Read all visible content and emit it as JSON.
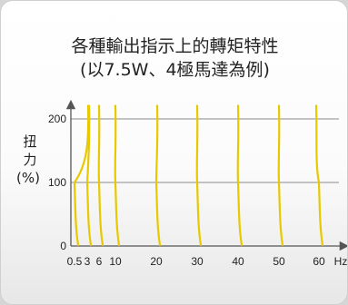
{
  "title_line1": "各種輸出指示上的轉矩特性",
  "title_line2": "(以7.5W、4極馬達為例)",
  "chart_data": {
    "type": "line",
    "title": "各種輸出指示上的轉矩特性 (以7.5W、4極馬達為例)",
    "ylabel_lines": [
      "扭",
      "力",
      "(%)"
    ],
    "xlabel": "Hz",
    "x_ticks": [
      "0.5",
      "3",
      "6",
      "10",
      "20",
      "30",
      "40",
      "50",
      "60"
    ],
    "x_unit_label": "Hz",
    "y_ticks": [
      "0",
      "100",
      "200"
    ],
    "ylim": [
      0,
      230
    ],
    "grid": true,
    "gridlines_y": [
      100,
      200
    ],
    "series_color": "#e8c800",
    "series": [
      {
        "frequency": "0.5",
        "points": [
          [
            0.5,
            215
          ],
          [
            0.5,
            100
          ],
          [
            0.5,
            0
          ]
        ]
      },
      {
        "frequency": "3",
        "points": [
          [
            3,
            215
          ],
          [
            3,
            100
          ],
          [
            3,
            0
          ]
        ]
      },
      {
        "frequency": "6",
        "points": [
          [
            6,
            215
          ],
          [
            6,
            100
          ],
          [
            6,
            0
          ]
        ]
      },
      {
        "frequency": "10",
        "points": [
          [
            10,
            215
          ],
          [
            10,
            100
          ],
          [
            10,
            0
          ]
        ]
      },
      {
        "frequency": "20",
        "points": [
          [
            20,
            215
          ],
          [
            20,
            100
          ],
          [
            20,
            0
          ]
        ]
      },
      {
        "frequency": "30",
        "points": [
          [
            30,
            215
          ],
          [
            30,
            100
          ],
          [
            30,
            0
          ]
        ]
      },
      {
        "frequency": "40",
        "points": [
          [
            40,
            215
          ],
          [
            40,
            100
          ],
          [
            40,
            0
          ]
        ]
      },
      {
        "frequency": "50",
        "points": [
          [
            50,
            215
          ],
          [
            50,
            100
          ],
          [
            50,
            0
          ]
        ]
      },
      {
        "frequency": "60",
        "points": [
          [
            60,
            215
          ],
          [
            60,
            100
          ],
          [
            60,
            0
          ]
        ]
      }
    ]
  }
}
